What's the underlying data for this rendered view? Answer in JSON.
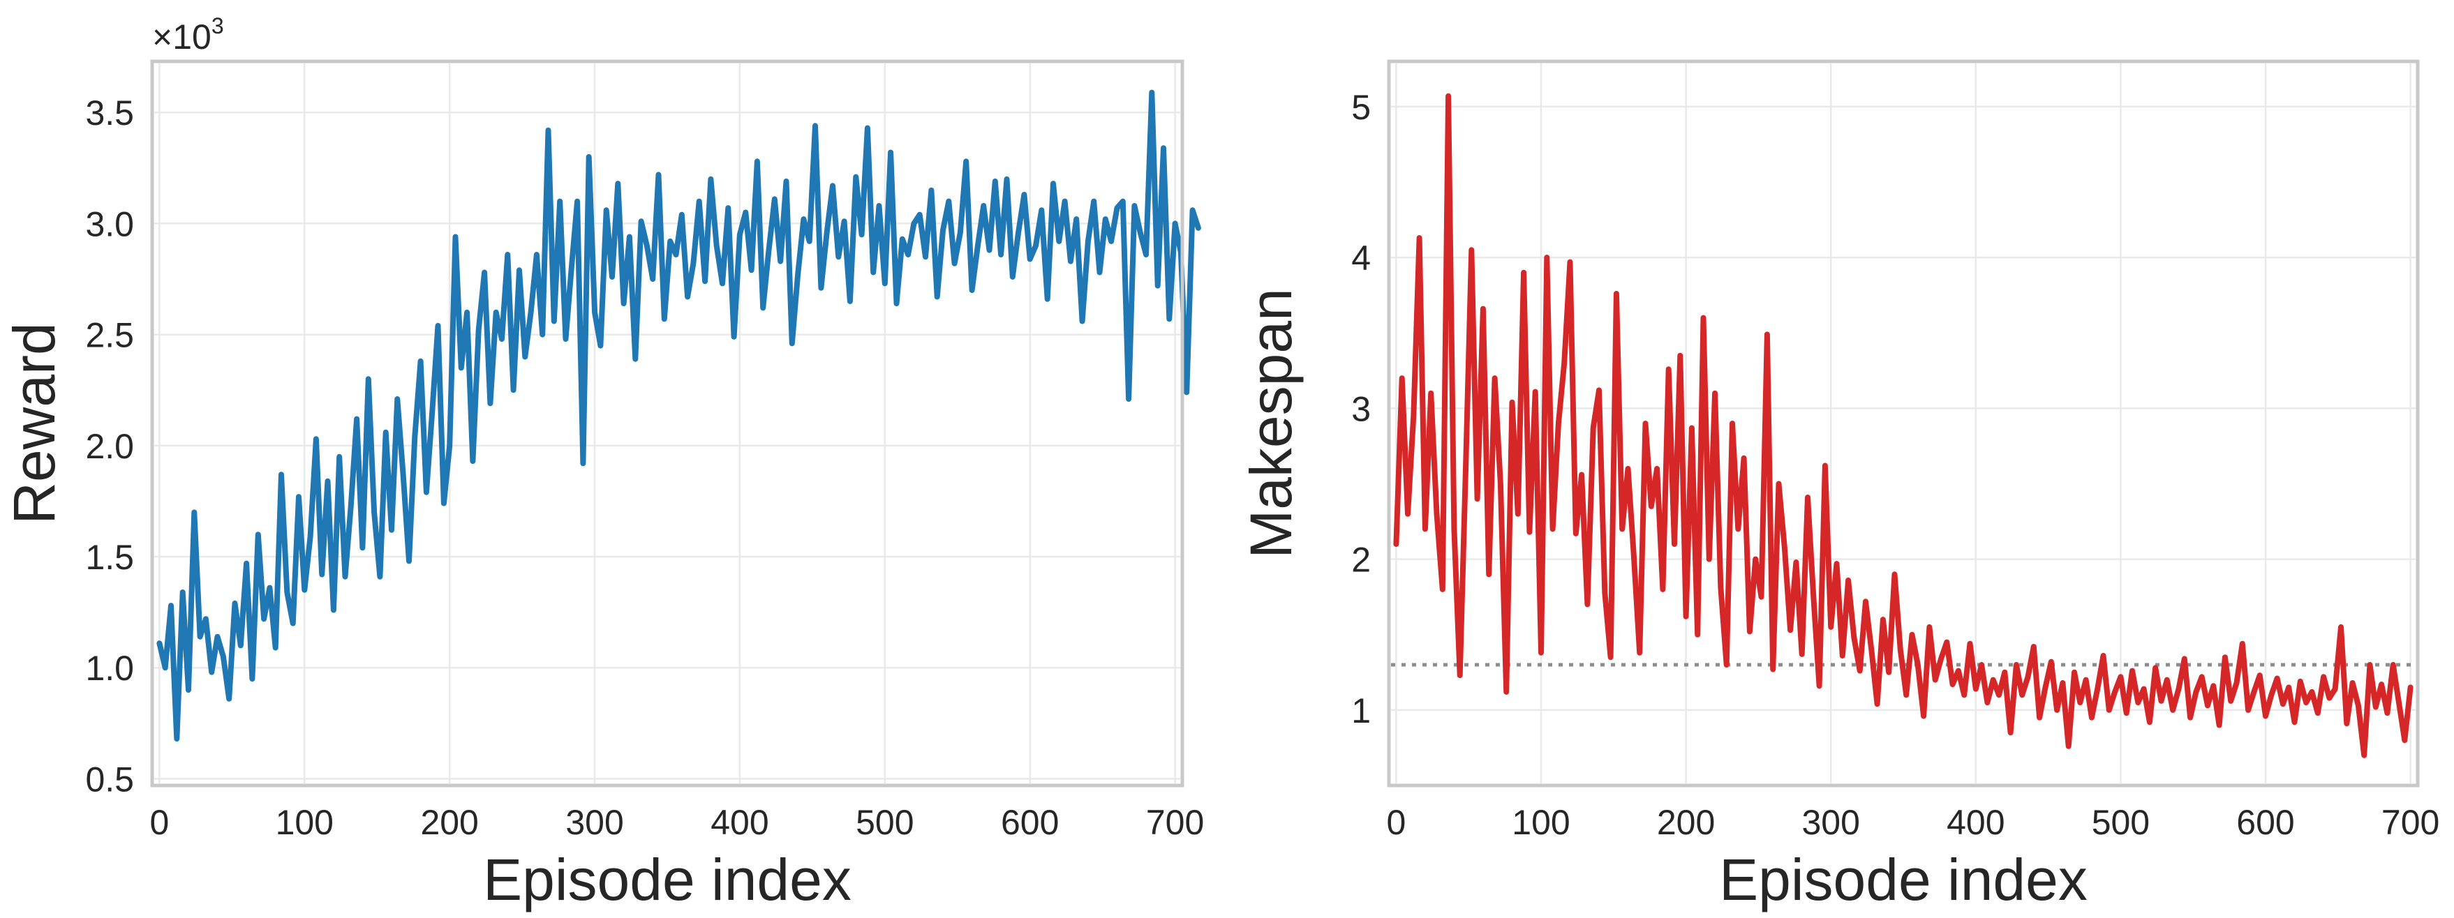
{
  "chart_data": [
    {
      "type": "line",
      "xlabel": "Episode index",
      "ylabel": "Reward",
      "y_offset_text": "×10",
      "y_offset_exponent": "3",
      "xlim": [
        -5,
        705
      ],
      "ylim": [
        0.47,
        3.73
      ],
      "x_ticks": [
        0,
        100,
        200,
        300,
        400,
        500,
        600,
        700
      ],
      "y_ticks": [
        0.5,
        1.0,
        1.5,
        2.0,
        2.5,
        3.0,
        3.5
      ],
      "y_tick_labels": [
        "0.5",
        "1.0",
        "1.5",
        "2.0",
        "2.5",
        "3.0",
        "3.5"
      ],
      "grid": true,
      "color": "#1f77b4",
      "series": [
        {
          "x_start": 0,
          "x_step": 4,
          "values": [
            1.11,
            1.0,
            1.28,
            0.68,
            1.34,
            0.9,
            1.7,
            1.14,
            1.22,
            0.98,
            1.14,
            1.05,
            0.86,
            1.29,
            1.1,
            1.47,
            0.95,
            1.6,
            1.22,
            1.36,
            1.09,
            1.87,
            1.34,
            1.2,
            1.77,
            1.35,
            1.59,
            2.03,
            1.42,
            1.84,
            1.26,
            1.95,
            1.41,
            1.73,
            2.12,
            1.54,
            2.3,
            1.7,
            1.41,
            2.06,
            1.62,
            2.21,
            1.87,
            1.48,
            2.04,
            2.38,
            1.79,
            2.15,
            2.54,
            1.74,
            2.0,
            2.94,
            2.35,
            2.6,
            1.93,
            2.52,
            2.78,
            2.19,
            2.6,
            2.48,
            2.86,
            2.25,
            2.79,
            2.4,
            2.6,
            2.86,
            2.5,
            3.42,
            2.56,
            3.1,
            2.48,
            2.8,
            3.1,
            1.92,
            3.3,
            2.6,
            2.45,
            3.06,
            2.76,
            3.18,
            2.64,
            2.94,
            2.39,
            3.01,
            2.9,
            2.75,
            3.22,
            2.57,
            2.92,
            2.86,
            3.04,
            2.67,
            2.82,
            3.1,
            2.74,
            3.2,
            2.9,
            2.73,
            3.07,
            2.49,
            2.95,
            3.05,
            2.79,
            3.28,
            2.62,
            2.88,
            3.11,
            2.83,
            3.19,
            2.46,
            2.77,
            3.02,
            2.92,
            3.44,
            2.71,
            2.96,
            3.17,
            2.85,
            3.01,
            2.65,
            3.21,
            2.95,
            3.43,
            2.78,
            3.08,
            2.73,
            3.32,
            2.64,
            2.93,
            2.86,
            3.0,
            3.04,
            2.85,
            3.15,
            2.67,
            2.97,
            3.1,
            2.82,
            2.96,
            3.28,
            2.7,
            2.9,
            3.08,
            2.88,
            3.19,
            2.86,
            3.2,
            2.76,
            2.96,
            3.13,
            2.84,
            2.9,
            3.06,
            2.66,
            3.18,
            2.92,
            3.1,
            2.83,
            3.02,
            2.56,
            2.92,
            3.1,
            2.78,
            3.02,
            2.92,
            3.07,
            3.1,
            2.21,
            3.08,
            2.96,
            2.86,
            3.59,
            2.72,
            3.34,
            2.57,
            3.0,
            2.87,
            2.24,
            3.06,
            2.98
          ]
        }
      ]
    },
    {
      "type": "line",
      "xlabel": "Episode index",
      "ylabel": "Makespan",
      "xlim": [
        -5,
        705
      ],
      "ylim": [
        0.5,
        5.3
      ],
      "x_ticks": [
        0,
        100,
        200,
        300,
        400,
        500,
        600,
        700
      ],
      "y_ticks": [
        1,
        2,
        3,
        4,
        5
      ],
      "y_tick_labels": [
        "1",
        "2",
        "3",
        "4",
        "5"
      ],
      "grid": true,
      "color": "#d62728",
      "reference_line": {
        "y": 1.3,
        "color": "#8c8c8c",
        "style": "dotted"
      },
      "series": [
        {
          "x_start": 0,
          "x_step": 4,
          "values": [
            2.1,
            3.2,
            2.3,
            2.95,
            4.13,
            2.2,
            3.1,
            2.3,
            1.8,
            5.07,
            2.2,
            1.23,
            2.6,
            4.05,
            2.4,
            3.66,
            1.9,
            3.2,
            2.5,
            1.12,
            3.04,
            2.3,
            3.9,
            2.18,
            3.11,
            1.38,
            4.0,
            2.2,
            2.9,
            3.3,
            3.97,
            2.17,
            2.56,
            1.7,
            2.87,
            3.12,
            1.78,
            1.35,
            3.76,
            2.2,
            2.6,
            2.02,
            1.38,
            2.9,
            2.35,
            2.6,
            1.8,
            3.26,
            2.1,
            3.35,
            1.62,
            2.87,
            1.5,
            3.6,
            2.0,
            3.1,
            1.81,
            1.3,
            2.9,
            2.2,
            2.67,
            1.52,
            2.0,
            1.75,
            3.49,
            1.27,
            2.5,
            2.08,
            1.53,
            1.98,
            1.37,
            2.41,
            1.75,
            1.16,
            2.62,
            1.55,
            1.97,
            1.36,
            1.86,
            1.48,
            1.26,
            1.72,
            1.4,
            1.04,
            1.6,
            1.25,
            1.9,
            1.4,
            1.1,
            1.5,
            1.3,
            0.96,
            1.55,
            1.2,
            1.34,
            1.45,
            1.17,
            1.26,
            1.1,
            1.44,
            1.14,
            1.3,
            1.05,
            1.2,
            1.1,
            1.25,
            0.85,
            1.3,
            1.1,
            1.22,
            1.42,
            0.95,
            1.15,
            1.32,
            1.0,
            1.18,
            0.76,
            1.25,
            1.05,
            1.2,
            0.95,
            1.14,
            1.36,
            1.0,
            1.12,
            1.22,
            0.98,
            1.26,
            1.05,
            1.14,
            0.92,
            1.28,
            1.06,
            1.2,
            1.0,
            1.14,
            1.34,
            0.95,
            1.12,
            1.22,
            1.03,
            1.16,
            0.9,
            1.35,
            1.06,
            1.18,
            1.44,
            1.0,
            1.12,
            1.23,
            0.96,
            1.1,
            1.21,
            1.04,
            1.15,
            0.92,
            1.19,
            1.05,
            1.12,
            0.98,
            1.22,
            1.08,
            1.14,
            1.55,
            0.91,
            1.18,
            1.03,
            0.7,
            1.3,
            1.02,
            1.17,
            0.98,
            1.3,
            1.05,
            0.8,
            1.15
          ]
        }
      ]
    }
  ]
}
